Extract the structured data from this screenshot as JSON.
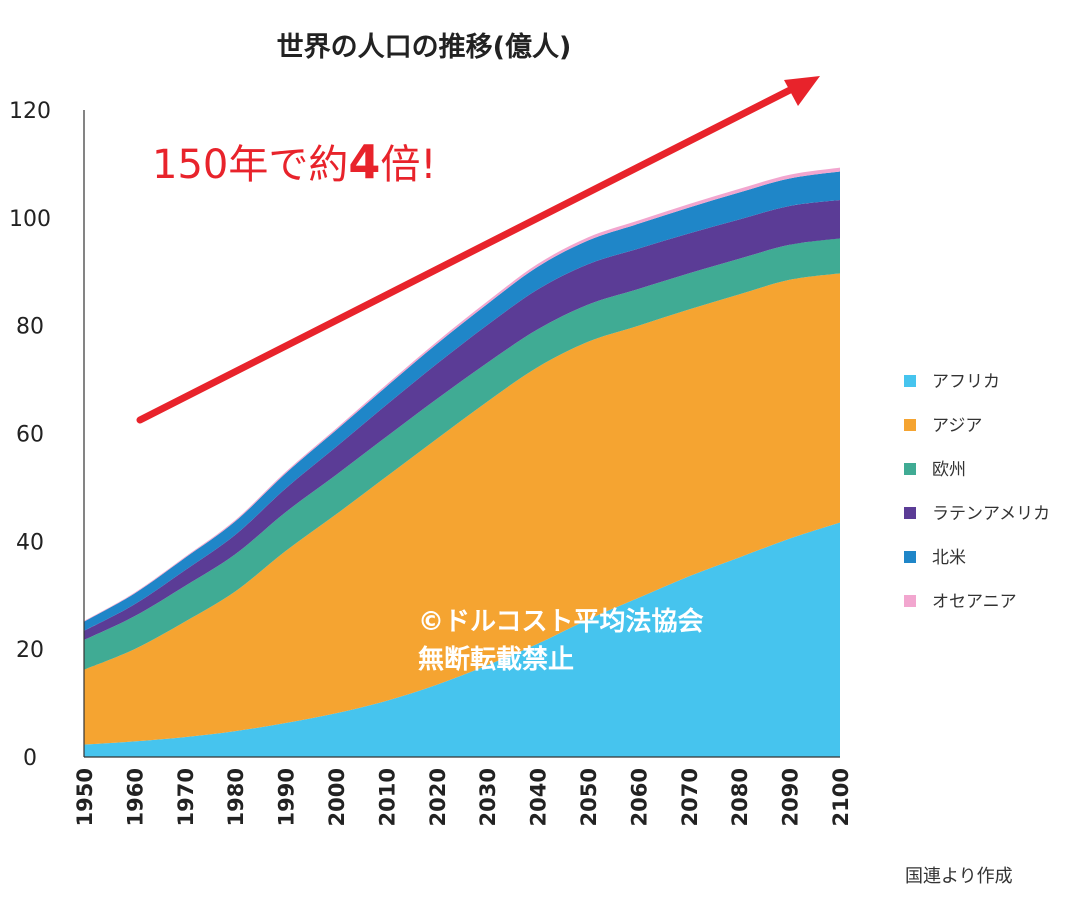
{
  "chart_data": {
    "type": "area",
    "stacked": true,
    "title": "世界の人口の推移(億人)",
    "x": [
      1950,
      1960,
      1970,
      1980,
      1990,
      2000,
      2010,
      2020,
      2030,
      2040,
      2050,
      2060,
      2070,
      2080,
      2090,
      2100
    ],
    "x_tick_labels": [
      "1950",
      "1960",
      "1970",
      "1980",
      "1990",
      "2000",
      "2010",
      "2020",
      "2030",
      "2040",
      "2050",
      "2060",
      "2070",
      "2080",
      "2090",
      "2100"
    ],
    "ylim": [
      0,
      120
    ],
    "y_ticks": [
      0,
      20,
      40,
      60,
      80,
      100,
      120
    ],
    "grid": false,
    "legend_placement": "right",
    "series": [
      {
        "name": "アフリカ",
        "color": "#46c4ee",
        "values": [
          2.3,
          2.9,
          3.7,
          4.8,
          6.3,
          8.1,
          10.4,
          13.4,
          17.0,
          21.0,
          25.5,
          29.5,
          33.5,
          37.0,
          40.5,
          43.5
        ]
      },
      {
        "name": "アジア",
        "color": "#f5a431",
        "values": [
          13.9,
          17.1,
          21.4,
          25.9,
          31.9,
          36.9,
          41.6,
          45.6,
          48.9,
          51.3,
          51.5,
          50.5,
          49.5,
          48.8,
          48.0,
          46.2
        ]
      },
      {
        "name": "欧州",
        "color": "#40ab94",
        "values": [
          5.5,
          6.1,
          6.6,
          6.9,
          7.2,
          7.3,
          7.4,
          7.4,
          7.2,
          7.0,
          6.9,
          6.8,
          6.7,
          6.6,
          6.5,
          6.5
        ]
      },
      {
        "name": "ラテンアメリカ",
        "color": "#5b3c96",
        "values": [
          1.7,
          2.2,
          2.9,
          3.6,
          4.4,
          5.2,
          5.9,
          6.5,
          7.0,
          7.4,
          7.5,
          7.5,
          7.4,
          7.3,
          7.2,
          7.1
        ]
      },
      {
        "name": "北米",
        "color": "#1f86c8",
        "values": [
          1.7,
          2.0,
          2.3,
          2.5,
          2.8,
          3.1,
          3.4,
          3.7,
          3.9,
          4.2,
          4.4,
          4.6,
          4.8,
          5.0,
          5.1,
          5.3
        ]
      },
      {
        "name": "オセアニア",
        "color": "#f2a6cf",
        "values": [
          0.13,
          0.16,
          0.2,
          0.23,
          0.27,
          0.31,
          0.37,
          0.43,
          0.48,
          0.53,
          0.57,
          0.61,
          0.64,
          0.67,
          0.7,
          0.72
        ]
      }
    ],
    "annotations": {
      "callout_prefix": "150年で約",
      "callout_number": "4",
      "callout_suffix": "倍!",
      "callout_color": "#e8232b"
    }
  },
  "watermark": {
    "line1": "©ドルコスト平均法協会",
    "line2": "無断転載禁止"
  },
  "source_note": "国連より作成"
}
